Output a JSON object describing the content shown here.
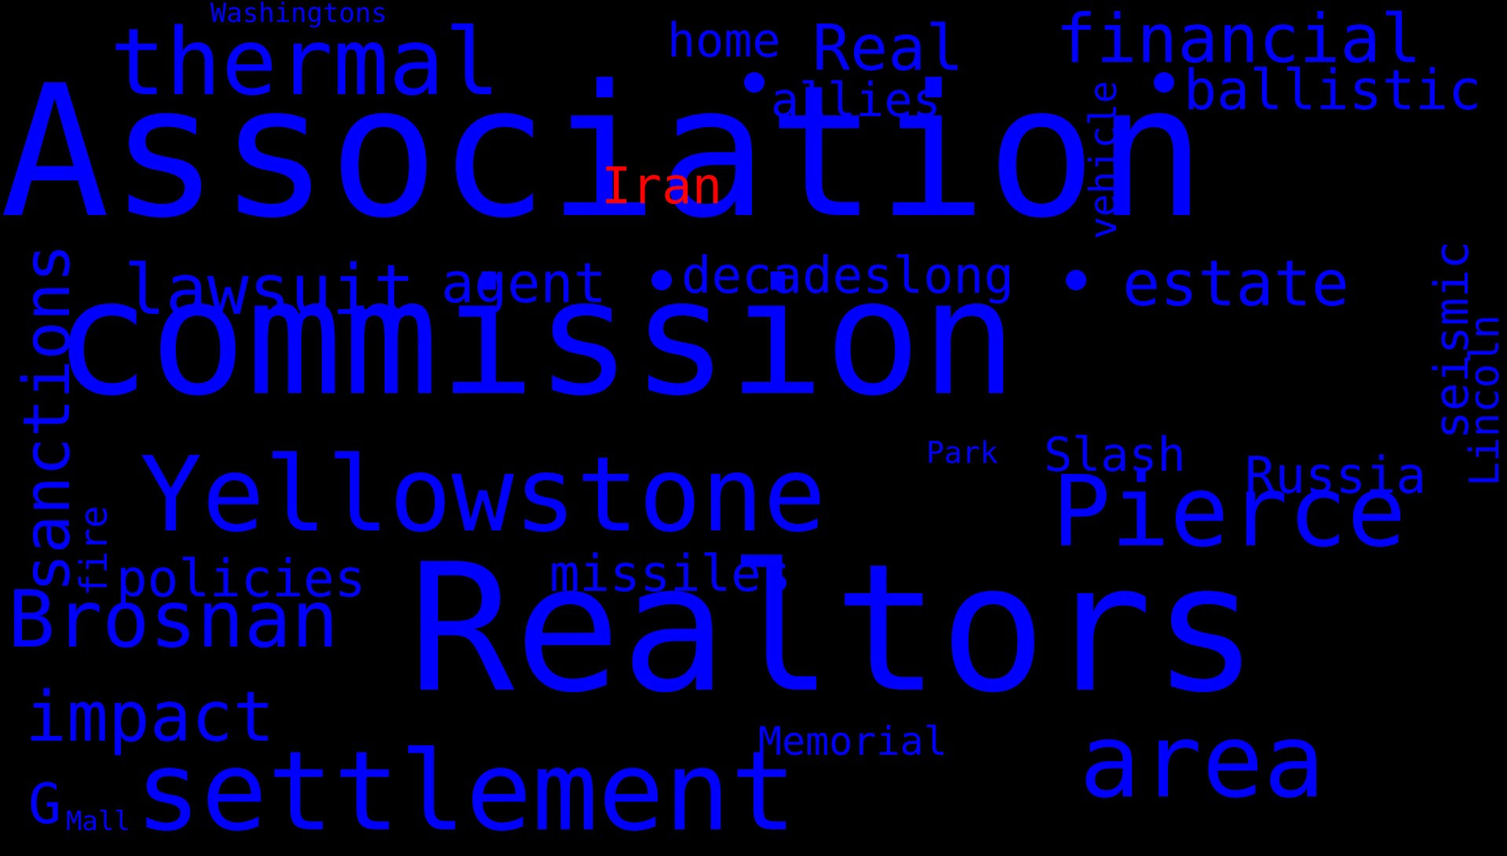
{
  "colors": {
    "background": "#000000",
    "default_word": "#0000ff",
    "highlight_word": "#ff0000"
  },
  "words": [
    {
      "id": "association",
      "text": "Association",
      "color": "default"
    },
    {
      "id": "commission",
      "text": "commission",
      "color": "default"
    },
    {
      "id": "realtors",
      "text": "Realtors",
      "color": "default"
    },
    {
      "id": "yellowstone",
      "text": "Yellowstone",
      "color": "default"
    },
    {
      "id": "settlement",
      "text": "settlement",
      "color": "default"
    },
    {
      "id": "thermal",
      "text": "thermal",
      "color": "default"
    },
    {
      "id": "pierce",
      "text": "Pierce",
      "color": "default"
    },
    {
      "id": "area",
      "text": "area",
      "color": "default"
    },
    {
      "id": "brosnan",
      "text": "Brosnan",
      "color": "default"
    },
    {
      "id": "financial",
      "text": "financial",
      "color": "default"
    },
    {
      "id": "real",
      "text": "Real",
      "color": "default"
    },
    {
      "id": "home",
      "text": "home",
      "color": "default"
    },
    {
      "id": "allies",
      "text": "allies",
      "color": "default"
    },
    {
      "id": "ballistic",
      "text": "ballistic",
      "color": "default"
    },
    {
      "id": "iran",
      "text": "Iran",
      "color": "highlight"
    },
    {
      "id": "lawsuit",
      "text": "lawsuit",
      "color": "default"
    },
    {
      "id": "agent",
      "text": "agent",
      "color": "default"
    },
    {
      "id": "decadeslong",
      "text": "decadeslong",
      "color": "default"
    },
    {
      "id": "estate",
      "text": "estate",
      "color": "default"
    },
    {
      "id": "sanctions",
      "text": "sanctions",
      "color": "default"
    },
    {
      "id": "vehicle",
      "text": "vehicle",
      "color": "default"
    },
    {
      "id": "seismic",
      "text": "seismic",
      "color": "default"
    },
    {
      "id": "lincoln",
      "text": "Lincoln",
      "color": "default"
    },
    {
      "id": "russia",
      "text": "Russia",
      "color": "default"
    },
    {
      "id": "slash",
      "text": "Slash",
      "color": "default"
    },
    {
      "id": "park",
      "text": "Park",
      "color": "default"
    },
    {
      "id": "fire",
      "text": "fire",
      "color": "default"
    },
    {
      "id": "policies",
      "text": "policies",
      "color": "default"
    },
    {
      "id": "missiles",
      "text": "missiles",
      "color": "default"
    },
    {
      "id": "impact",
      "text": "impact",
      "color": "default"
    },
    {
      "id": "memorial",
      "text": "Memorial",
      "color": "default"
    },
    {
      "id": "washingtons",
      "text": "Washingtons",
      "color": "default"
    },
    {
      "id": "g",
      "text": "G",
      "color": "default"
    },
    {
      "id": "mall",
      "text": "Mall",
      "color": "default"
    }
  ]
}
